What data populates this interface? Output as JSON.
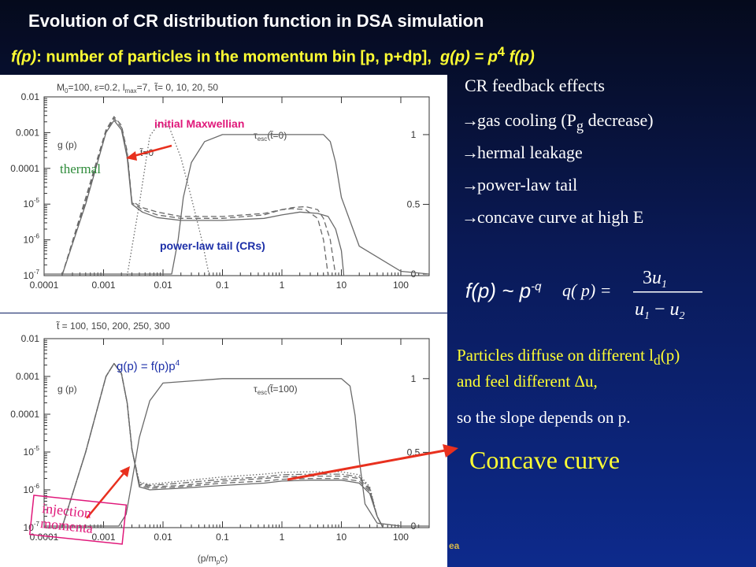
{
  "slide": {
    "title": "Evolution of CR distribution function in DSA simulation",
    "subtitle_fp": "f(p)",
    "subtitle_desc": ": number of particles in the momentum bin [p, p+dp],",
    "subtitle_gp": "g(p) = p",
    "subtitle_exp": "4",
    "subtitle_fp2": "f(p)",
    "footer": "ea"
  },
  "feedback": {
    "heading": "CR feedback effects",
    "arrow_glyph": "→",
    "items": [
      {
        "pre": "gas cooling (P",
        "sub": "g",
        "post": " decrease)"
      },
      {
        "text": "hermal leakage"
      },
      {
        "text": "power-law tail"
      },
      {
        "text": "concave curve at high E"
      }
    ]
  },
  "formula": {
    "powerlaw": "f(p) ~ p",
    "powerlaw_exp": "-q",
    "q_lhs": "q( p) =",
    "q_num_coef": "3",
    "q_num_var": "u",
    "q_num_sub": "1",
    "q_den_var1": "u",
    "q_den_sub1": "1",
    "q_den_op": "−",
    "q_den_var2": "u",
    "q_den_sub2": "2"
  },
  "explanation": {
    "line1_pre": "Particles diffuse on different l",
    "line1_sub": "d",
    "line1_post": "(p)",
    "line2": "and feel different Δu,",
    "line3": "so the slope depends on p.",
    "concave": "Concave curve"
  },
  "annotations": {
    "initial_maxwellian": "initial Maxwellian",
    "thermal": "thermal",
    "power_law_tail": "power-law tail (CRs)",
    "gp_formula": "g(p) = f(p)p",
    "gp_formula_exp": "4",
    "injection_line1": "injection",
    "injection_line2": "momenta"
  },
  "colors": {
    "title": "#ffffff",
    "subtitle": "#ffff33",
    "maxwellian": "#e0187a",
    "thermal": "#2e8b3a",
    "power_law": "#1c2fa8",
    "gp_formula": "#1c2fa8",
    "injection": "#e0187a",
    "arrow": "#e8301e",
    "curves": "#6a6a6a"
  },
  "chart_data": [
    {
      "type": "line",
      "panel": "top",
      "header_pre": "M",
      "header_pre_sub": "0",
      "header_mid": "=100,  ε=0.2,  l",
      "header_mid_sub": "max",
      "header_post": "=7,",
      "header_t": "t̃",
      "header_t_vals": "=  0,  10,  20,  50",
      "xscale": "log",
      "xlim": [
        0.0001,
        300
      ],
      "xticks": [
        "0.0001",
        "0.001",
        "0.01",
        "0.1",
        "1",
        "10",
        "100"
      ],
      "yscale": "log",
      "ylim": [
        1e-07,
        0.01
      ],
      "yticks_plain": [
        "0.01",
        "0.001",
        "0.0001"
      ],
      "yticks_pow": [
        "10",
        "10",
        "10"
      ],
      "yticks_pow_exp": [
        "-5",
        "-6",
        "-7"
      ],
      "right_ticks": [
        "1",
        "0.5",
        "0"
      ],
      "curve_label": "g (p)",
      "t0_label_t": "t̃",
      "t0_label_rest": "=0",
      "tau_label": "τ",
      "tau_sub": "esc",
      "tau_paren_t": "t̃",
      "tau_paren_rest": "=0",
      "series": [
        {
          "name": "t̃=0",
          "style": "dotted",
          "x": [
            0.0025,
            0.004,
            0.006,
            0.009,
            0.013,
            0.02,
            0.03,
            0.045,
            0.06
          ],
          "y": [
            1e-07,
            1e-05,
            0.0008,
            0.002,
            0.0013,
            0.0002,
            1.5e-05,
            1e-06,
            1e-07
          ]
        },
        {
          "name": "t̃=10",
          "x": [
            0.0002,
            0.0005,
            0.0011,
            0.0015,
            0.002,
            0.0025,
            0.003,
            0.0045,
            0.008,
            0.02,
            0.1,
            0.5,
            1,
            1.5,
            2.5,
            4,
            5,
            6,
            7
          ],
          "y": [
            1e-07,
            1.5e-05,
            0.0012,
            0.0028,
            0.0016,
            0.0003,
            1.2e-05,
            8e-06,
            6e-06,
            4.5e-06,
            4.5e-06,
            5.5e-06,
            7e-06,
            7.5e-06,
            7e-06,
            4e-06,
            1e-06,
            1e-07,
            1e-07
          ]
        },
        {
          "name": "t̃=20",
          "x": [
            0.0002,
            0.0005,
            0.0011,
            0.0015,
            0.002,
            0.0025,
            0.003,
            0.0045,
            0.008,
            0.02,
            0.1,
            0.5,
            1,
            1.5,
            2.5,
            4,
            5,
            6.5,
            8,
            9
          ],
          "y": [
            1e-07,
            1.2e-05,
            0.0011,
            0.0025,
            0.0014,
            0.00025,
            1.1e-05,
            7e-06,
            5e-06,
            4e-06,
            4e-06,
            5e-06,
            7e-06,
            8e-06,
            8.5e-06,
            7e-06,
            4e-06,
            1e-06,
            1e-07,
            1e-07
          ]
        },
        {
          "name": "t̃=50",
          "style": "solid",
          "x": [
            0.0002,
            0.0005,
            0.0011,
            0.0015,
            0.002,
            0.0025,
            0.003,
            0.0045,
            0.008,
            0.02,
            0.1,
            0.5,
            1,
            2,
            4,
            6,
            8,
            10,
            11,
            12
          ],
          "y": [
            1e-07,
            1e-05,
            0.001,
            0.0022,
            0.0012,
            0.0002,
            1e-05,
            6e-06,
            4.2e-06,
            3.5e-06,
            3.5e-06,
            4e-06,
            5e-06,
            6e-06,
            5.5e-06,
            4.5e-06,
            2e-06,
            5e-07,
            1e-07,
            1e-07
          ]
        },
        {
          "name": "tau_esc_t0",
          "style": "solid",
          "axis": "right",
          "x": [
            0.0001,
            0.001,
            0.01,
            0.014,
            0.018,
            0.022,
            0.03,
            0.05,
            0.1,
            1,
            3,
            5,
            6.5,
            8,
            10,
            20,
            100,
            300
          ],
          "y": [
            0,
            0,
            0,
            0,
            0.25,
            0.55,
            0.8,
            0.95,
            1,
            1,
            1,
            1,
            0.95,
            0.8,
            0.55,
            0.2,
            0.02,
            0
          ]
        }
      ]
    },
    {
      "type": "line",
      "panel": "bottom",
      "header_t": "t̃",
      "header_t_vals": " = 100, 150, 200, 250, 300",
      "xscale": "log",
      "xlim": [
        0.0001,
        300
      ],
      "xticks": [
        "0.0001",
        "0.001",
        "0.01",
        "0.1",
        "1",
        "10",
        "100"
      ],
      "xlabel": "(p/m",
      "xlabel_sub": "p",
      "xlabel_post": "c)",
      "yscale": "log",
      "ylim": [
        1e-07,
        0.01
      ],
      "yticks_plain": [
        "0.01",
        "0.001",
        "0.0001"
      ],
      "yticks_pow": [
        "10",
        "10",
        "10"
      ],
      "yticks_pow_exp": [
        "-5",
        "-6",
        "-7"
      ],
      "right_ticks": [
        "1",
        "0.5",
        "0"
      ],
      "curve_label": "g (p)",
      "tau_label": "τ",
      "tau_sub": "esc",
      "tau_paren_t": "t̃",
      "tau_paren_rest": "=100",
      "series": [
        {
          "name": "t̃=100",
          "style": "solid",
          "x": [
            0.0002,
            0.0005,
            0.0011,
            0.0015,
            0.002,
            0.0025,
            0.003,
            0.004,
            0.006,
            0.02,
            0.1,
            0.5,
            1,
            3,
            10,
            20,
            30,
            40,
            50
          ],
          "y": [
            1e-07,
            1e-05,
            0.001,
            0.0022,
            0.0012,
            0.0002,
            1.2e-05,
            1.2e-06,
            1e-06,
            1.1e-06,
            1.3e-06,
            1.5e-06,
            1.7e-06,
            1.8e-06,
            1.8e-06,
            1.5e-06,
            8e-07,
            2e-07,
            1e-07
          ]
        },
        {
          "name": "t̃=150",
          "style": "dashed",
          "x": [
            0.0002,
            0.0005,
            0.0011,
            0.0015,
            0.002,
            0.0025,
            0.003,
            0.004,
            0.006,
            0.02,
            0.1,
            0.5,
            1,
            3,
            10,
            20,
            30,
            40,
            50
          ],
          "y": [
            1e-07,
            1e-05,
            0.001,
            0.0022,
            0.0012,
            0.0002,
            1.2e-05,
            1.3e-06,
            1.1e-06,
            1.2e-06,
            1.5e-06,
            1.7e-06,
            1.9e-06,
            2e-06,
            2e-06,
            1.7e-06,
            9e-07,
            2e-07,
            1e-07
          ]
        },
        {
          "name": "t̃=200",
          "style": "dashed",
          "x": [
            0.0002,
            0.0005,
            0.0011,
            0.0015,
            0.002,
            0.0025,
            0.003,
            0.004,
            0.006,
            0.02,
            0.1,
            0.5,
            1,
            3,
            10,
            20,
            30,
            40,
            50
          ],
          "y": [
            1e-07,
            1e-05,
            0.001,
            0.0022,
            0.0012,
            0.0002,
            1.2e-05,
            1.4e-06,
            1.2e-06,
            1.3e-06,
            1.7e-06,
            2e-06,
            2.2e-06,
            2.3e-06,
            2.3e-06,
            2e-06,
            1e-06,
            2e-07,
            1e-07
          ]
        },
        {
          "name": "t̃=250",
          "style": "dashdot",
          "x": [
            0.0002,
            0.0005,
            0.0011,
            0.0015,
            0.002,
            0.0025,
            0.003,
            0.004,
            0.006,
            0.02,
            0.1,
            0.5,
            1,
            3,
            10,
            20,
            30,
            40,
            50
          ],
          "y": [
            1e-07,
            1e-05,
            0.001,
            0.0022,
            0.0012,
            0.0002,
            1.2e-05,
            1.5e-06,
            1.3e-06,
            1.5e-06,
            1.9e-06,
            2.2e-06,
            2.5e-06,
            2.6e-06,
            2.6e-06,
            2.2e-06,
            1.1e-06,
            2e-07,
            1e-07
          ]
        },
        {
          "name": "t̃=300",
          "style": "dotted",
          "x": [
            0.0002,
            0.0005,
            0.0011,
            0.0015,
            0.002,
            0.0025,
            0.003,
            0.004,
            0.006,
            0.02,
            0.1,
            0.5,
            1,
            3,
            10,
            20,
            30,
            40,
            50
          ],
          "y": [
            1e-07,
            1e-05,
            0.001,
            0.0022,
            0.0012,
            0.0002,
            1.2e-05,
            1.6e-06,
            1.4e-06,
            1.7e-06,
            2.2e-06,
            2.6e-06,
            2.9e-06,
            3e-06,
            3e-06,
            2.5e-06,
            1.2e-06,
            2e-07,
            1e-07
          ]
        },
        {
          "name": "tau_esc_t100",
          "style": "solid",
          "axis": "right",
          "x": [
            0.0001,
            0.001,
            0.0018,
            0.0024,
            0.003,
            0.004,
            0.006,
            0.01,
            0.1,
            1,
            10,
            14,
            17,
            20,
            25,
            40,
            100,
            300
          ],
          "y": [
            0,
            0,
            0,
            0.08,
            0.3,
            0.6,
            0.85,
            0.97,
            1,
            1,
            1,
            0.95,
            0.75,
            0.45,
            0.15,
            0.02,
            0,
            0
          ]
        }
      ]
    }
  ]
}
